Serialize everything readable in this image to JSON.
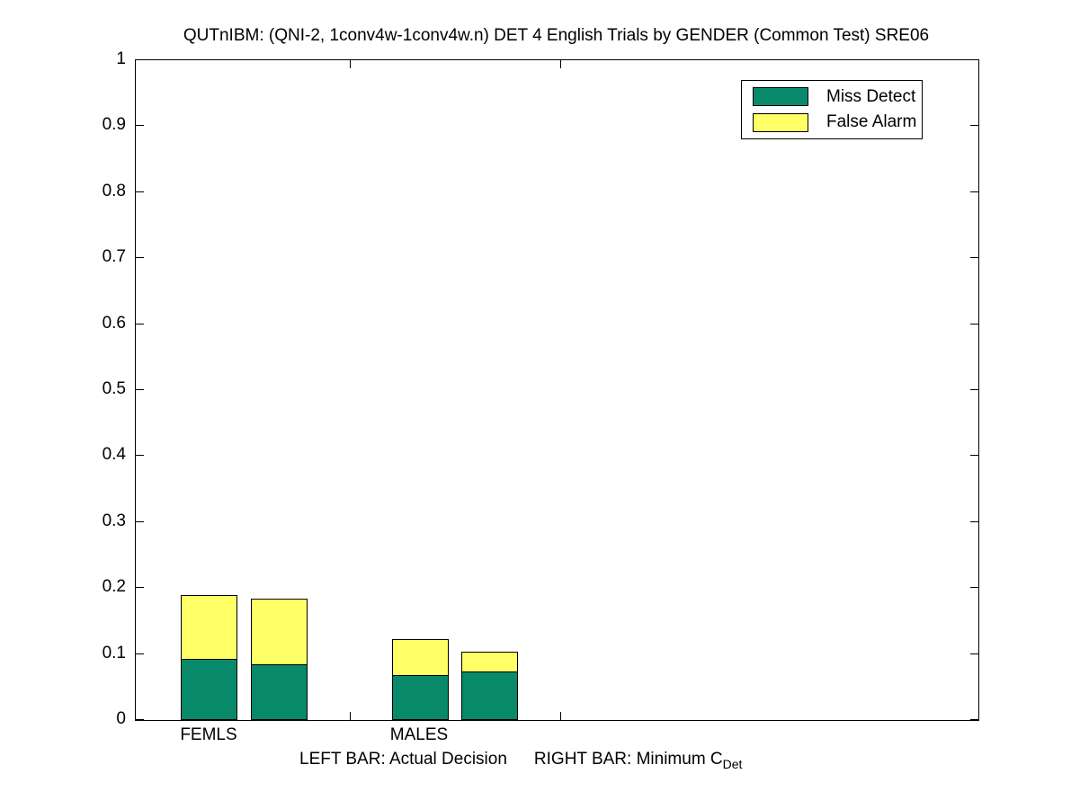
{
  "figure": {
    "title": "QUTnIBM: (QNI-2, 1conv4w-1conv4w.n) DET 4 English Trials by GENDER (Common Test) SRE06",
    "caption_left": "LEFT BAR: Actual Decision",
    "caption_right": "RIGHT BAR: Minimum C",
    "caption_subscript": "Det"
  },
  "chart_data": {
    "type": "bar",
    "stacked": true,
    "title": "QUTnIBM: (QNI-2, 1conv4w-1conv4w.n) DET 4 English Trials by GENDER (Common Test) SRE06",
    "categories": [
      "FEMLS",
      "MALES"
    ],
    "bar_meaning": {
      "left_bar": "Actual Decision",
      "right_bar": "Minimum C_Det"
    },
    "series": [
      {
        "name": "Miss Detect",
        "color": "#088A6A",
        "values": [
          0.092,
          0.085,
          0.068,
          0.073
        ]
      },
      {
        "name": "False Alarm",
        "color": "#FFFF66",
        "values": [
          0.098,
          0.099,
          0.054,
          0.031
        ]
      }
    ],
    "bars": [
      {
        "group": "FEMLS",
        "bar": "Actual Decision",
        "x": 1.0
      },
      {
        "group": "FEMLS",
        "bar": "Minimum C_Det",
        "x": 1.33
      },
      {
        "group": "MALES",
        "bar": "Actual Decision",
        "x": 2.0
      },
      {
        "group": "MALES",
        "bar": "Minimum C_Det",
        "x": 2.33
      }
    ],
    "bar_width": 0.27,
    "xlim": [
      0.65,
      4.65
    ],
    "ylim": [
      0,
      1
    ],
    "y_ticks": [
      0,
      0.1,
      0.2,
      0.3,
      0.4,
      0.5,
      0.6,
      0.7,
      0.8,
      0.9,
      1
    ],
    "y_tick_labels": [
      "0",
      "0.1",
      "0.2",
      "0.3",
      "0.4",
      "0.5",
      "0.6",
      "0.7",
      "0.8",
      "0.9",
      "1"
    ],
    "x_ticks": [
      1.665,
      2.665
    ],
    "group_labels": [
      {
        "text": "FEMLS",
        "x": 1.0
      },
      {
        "text": "MALES",
        "x": 2.0
      }
    ],
    "grid": false,
    "legend": {
      "position": "top-right",
      "items": [
        {
          "label": "Miss Detect",
          "color": "#088A6A"
        },
        {
          "label": "False Alarm",
          "color": "#FFFF66"
        }
      ]
    },
    "edge_color": "#000000",
    "background": "#FFFFFF"
  }
}
